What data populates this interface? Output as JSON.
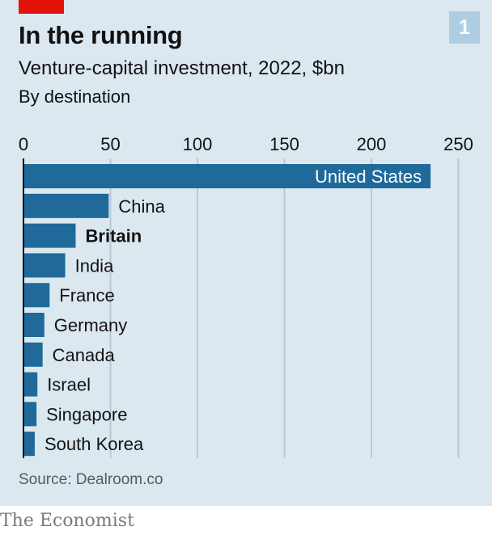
{
  "header": {
    "badge": "1",
    "title": "In the running",
    "subtitle": "Venture-capital investment, 2022, $bn",
    "subtitle2": "By destination"
  },
  "footer": {
    "source": "Source: Dealroom.co",
    "brand": "The Economist"
  },
  "colors": {
    "bar": "#1f6a9a",
    "grid": "#b8c8d6",
    "accent": "#e3120b",
    "badge": "#aecde3"
  },
  "chart_data": {
    "type": "bar",
    "orientation": "horizontal",
    "categories": [
      "United States",
      "China",
      "Britain",
      "India",
      "France",
      "Germany",
      "Canada",
      "Israel",
      "Singapore",
      "South Korea"
    ],
    "values": [
      234,
      49,
      30,
      24,
      15,
      12,
      11,
      8,
      7.5,
      6.5
    ],
    "highlight": "Britain",
    "xlim": [
      0,
      250
    ],
    "xticks": [
      0,
      50,
      100,
      150,
      200,
      250
    ],
    "grid": true
  }
}
